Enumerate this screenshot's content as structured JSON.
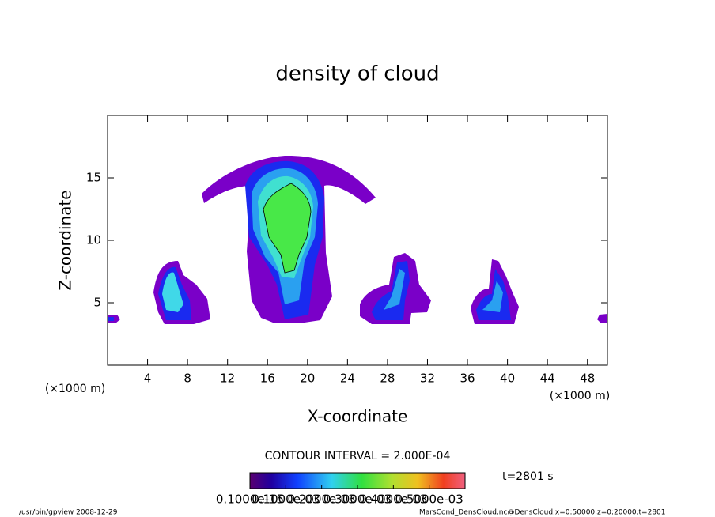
{
  "chart_data": {
    "type": "contour",
    "title": "density of cloud",
    "x_label": "X-coordinate",
    "y_label": "Z-coordinate",
    "x_unit_left": "(×1000 m)",
    "x_unit_right": "(×1000 m)",
    "xlim": [
      0,
      50
    ],
    "ylim": [
      0,
      20
    ],
    "xticks": [
      4,
      8,
      12,
      16,
      20,
      24,
      28,
      32,
      36,
      40,
      44,
      48
    ],
    "yticks": [
      5,
      10,
      15
    ],
    "contour_interval": "CONTOUR INTERVAL = 2.000E-04",
    "time_label": "t=2801 s",
    "colorbar": {
      "lim": [
        0,
        0.0006
      ],
      "ticks": [
        {
          "value": 1e-16,
          "label": "0.1000e-15"
        },
        {
          "value": 0.0001,
          "label": "0.1000e-03"
        },
        {
          "value": 0.0002,
          "label": "0.2000e-03"
        },
        {
          "value": 0.0003,
          "label": "0.3000e-03"
        },
        {
          "value": 0.0004,
          "label": "0.4000e-03"
        },
        {
          "value": 0.0005,
          "label": "0.5000e-03"
        }
      ]
    },
    "footer_left": "/usr/bin/gpview   2008-12-29",
    "footer_right": "MarsCond_DensCloud.nc@DensCloud,x=0:50000,z=0:20000,t=2801"
  }
}
